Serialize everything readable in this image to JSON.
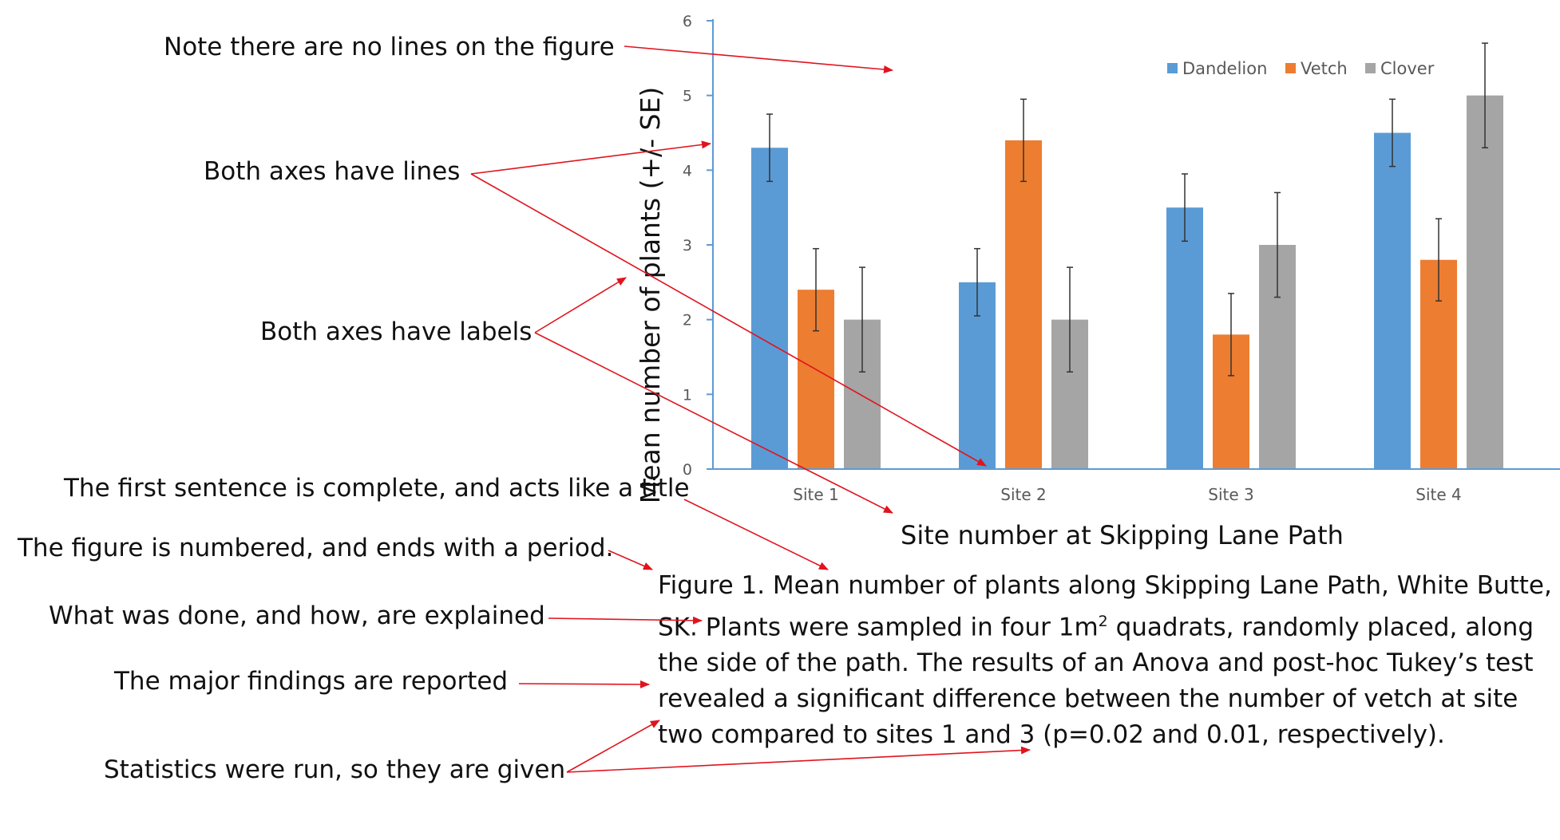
{
  "chart_data": {
    "type": "bar",
    "categories": [
      "Site 1",
      "Site 2",
      "Site 3",
      "Site 4"
    ],
    "series": [
      {
        "name": "Dandelion",
        "color": "#5B9BD5",
        "values": [
          4.3,
          2.5,
          3.5,
          4.5
        ],
        "error": [
          0.45,
          0.45,
          0.45,
          0.45
        ]
      },
      {
        "name": "Vetch",
        "color": "#ED7D31",
        "values": [
          2.4,
          4.4,
          1.8,
          2.8
        ],
        "error": [
          0.55,
          0.55,
          0.55,
          0.55
        ]
      },
      {
        "name": "Clover",
        "color": "#A5A5A5",
        "values": [
          2.0,
          2.0,
          3.0,
          5.0
        ],
        "error": [
          0.7,
          0.7,
          0.7,
          0.7
        ]
      }
    ],
    "xlabel": "Site number at Skipping Lane Path",
    "ylabel": "Mean number of plants (+/- SE)",
    "ylim": [
      0,
      6
    ],
    "yticks": [
      "0",
      "1",
      "2",
      "3",
      "4",
      "5",
      "6"
    ],
    "grid": false,
    "legend_position": "top-right",
    "error_bars": true
  },
  "caption": {
    "line1": "Figure 1. Mean number of plants along Skipping Lane Path, White Butte,",
    "line2_pre": "SK. Plants were sampled in four 1m",
    "line2_sup": "2",
    "line2_post": " quadrats, randomly placed, along",
    "line3": "the side of the path.  The results of an Anova and post-hoc Tukey’s test",
    "line4": "revealed a significant difference between the number of vetch at site",
    "line5": "two compared to sites 1 and 3 (p=0.02 and 0.01, respectively)."
  },
  "annotations": [
    "Note there are no lines on the figure",
    "Both axes have lines",
    "Both axes have labels",
    "The first sentence is complete, and acts like a title",
    "The figure is numbered, and ends with a period.",
    "What was done, and how, are explained",
    "The major findings are reported",
    "Statistics were run, so they are given"
  ],
  "colors": {
    "arrow": "#E0141E",
    "axis": "#5B9BD5"
  }
}
